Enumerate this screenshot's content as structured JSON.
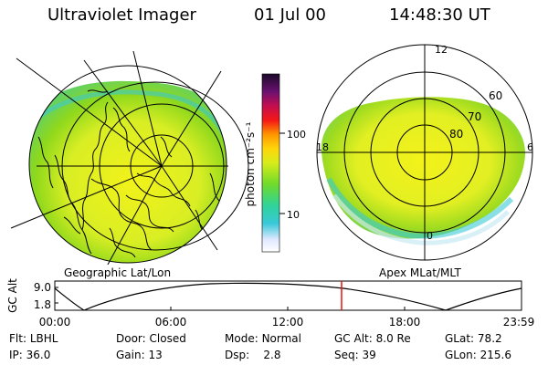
{
  "header": {
    "title": "Ultraviolet Imager",
    "date": "01 Jul 00",
    "time": "14:48:30 UT"
  },
  "left_panel": {
    "caption": "Geographic Lat/Lon"
  },
  "right_panel": {
    "caption": "Apex MLat/MLT",
    "mlt_labels": [
      "12",
      "18",
      "6",
      "0"
    ],
    "lat_labels": [
      "60",
      "70",
      "80"
    ]
  },
  "colorbar": {
    "label": "photon cm⁻²s⁻¹",
    "ticks": [
      "100",
      "10"
    ],
    "scale": "log"
  },
  "altitude_plot": {
    "ylabel": "GC Alt",
    "yticks": [
      "9.0",
      "1.8"
    ],
    "xticks": [
      "00:00",
      "06:00",
      "12:00",
      "18:00",
      "23:59"
    ],
    "current_time_marker": "14:48"
  },
  "info": {
    "row1": [
      {
        "label": "Flt:",
        "value": "LBHL"
      },
      {
        "label": "Door:",
        "value": "Closed"
      },
      {
        "label": "Mode:",
        "value": "Normal"
      },
      {
        "label": "GC Alt:",
        "value": "8.0 Re"
      },
      {
        "label": "GLat:",
        "value": "78.2"
      }
    ],
    "row2": [
      {
        "label": "IP:",
        "value": "36.0"
      },
      {
        "label": "Gain:",
        "value": "13"
      },
      {
        "label": "Dsp:",
        "value": "2.8"
      },
      {
        "label": "Seq:",
        "value": "39"
      },
      {
        "label": "GLon:",
        "value": "215.6"
      }
    ]
  },
  "colors": {
    "accent_marker": "#e8120c",
    "aurora_bright": "#f2f21a",
    "aurora_mid": "#8fd81c",
    "aurora_dim": "#39c9d6"
  }
}
